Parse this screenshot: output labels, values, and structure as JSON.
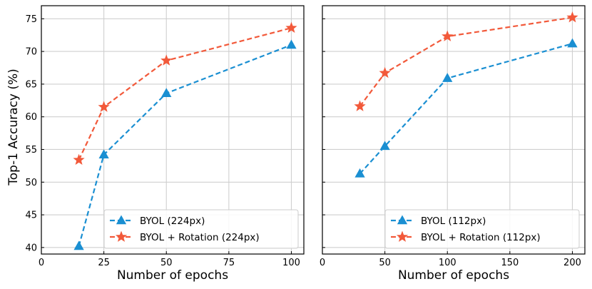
{
  "chart_data": [
    {
      "type": "line",
      "xlabel": "Number of epochs",
      "ylabel": "Top-1 Accuracy (%)",
      "xlim": [
        0,
        105
      ],
      "ylim": [
        39,
        77
      ],
      "xticks": [
        0,
        25,
        50,
        75,
        100
      ],
      "yticks": [
        40,
        45,
        50,
        55,
        60,
        65,
        70,
        75
      ],
      "grid": true,
      "legend_position": "lower-right",
      "series": [
        {
          "name": "BYOL (224px)",
          "color": "#1a8fd2",
          "marker": "triangle",
          "x": [
            15,
            25,
            50,
            100
          ],
          "y": [
            40.2,
            54.2,
            63.6,
            71.0
          ]
        },
        {
          "name": "BYOL + Rotation (224px)",
          "color": "#f2593a",
          "marker": "star",
          "x": [
            15,
            25,
            50,
            100
          ],
          "y": [
            53.4,
            61.5,
            68.6,
            73.6
          ]
        }
      ]
    },
    {
      "type": "line",
      "xlabel": "Number of epochs",
      "ylabel": "",
      "xlim": [
        0,
        210
      ],
      "ylim": [
        39,
        77
      ],
      "xticks": [
        0,
        50,
        100,
        150,
        200
      ],
      "yticks": [
        40,
        45,
        50,
        55,
        60,
        65,
        70,
        75
      ],
      "grid": true,
      "legend_position": "lower-right",
      "series": [
        {
          "name": "BYOL (112px)",
          "color": "#1a8fd2",
          "marker": "triangle",
          "x": [
            30,
            50,
            100,
            200
          ],
          "y": [
            51.3,
            55.5,
            65.9,
            71.2
          ]
        },
        {
          "name": "BYOL + Rotation (112px)",
          "color": "#f2593a",
          "marker": "star",
          "x": [
            30,
            50,
            100,
            200
          ],
          "y": [
            61.6,
            66.7,
            72.3,
            75.2
          ]
        }
      ]
    }
  ]
}
